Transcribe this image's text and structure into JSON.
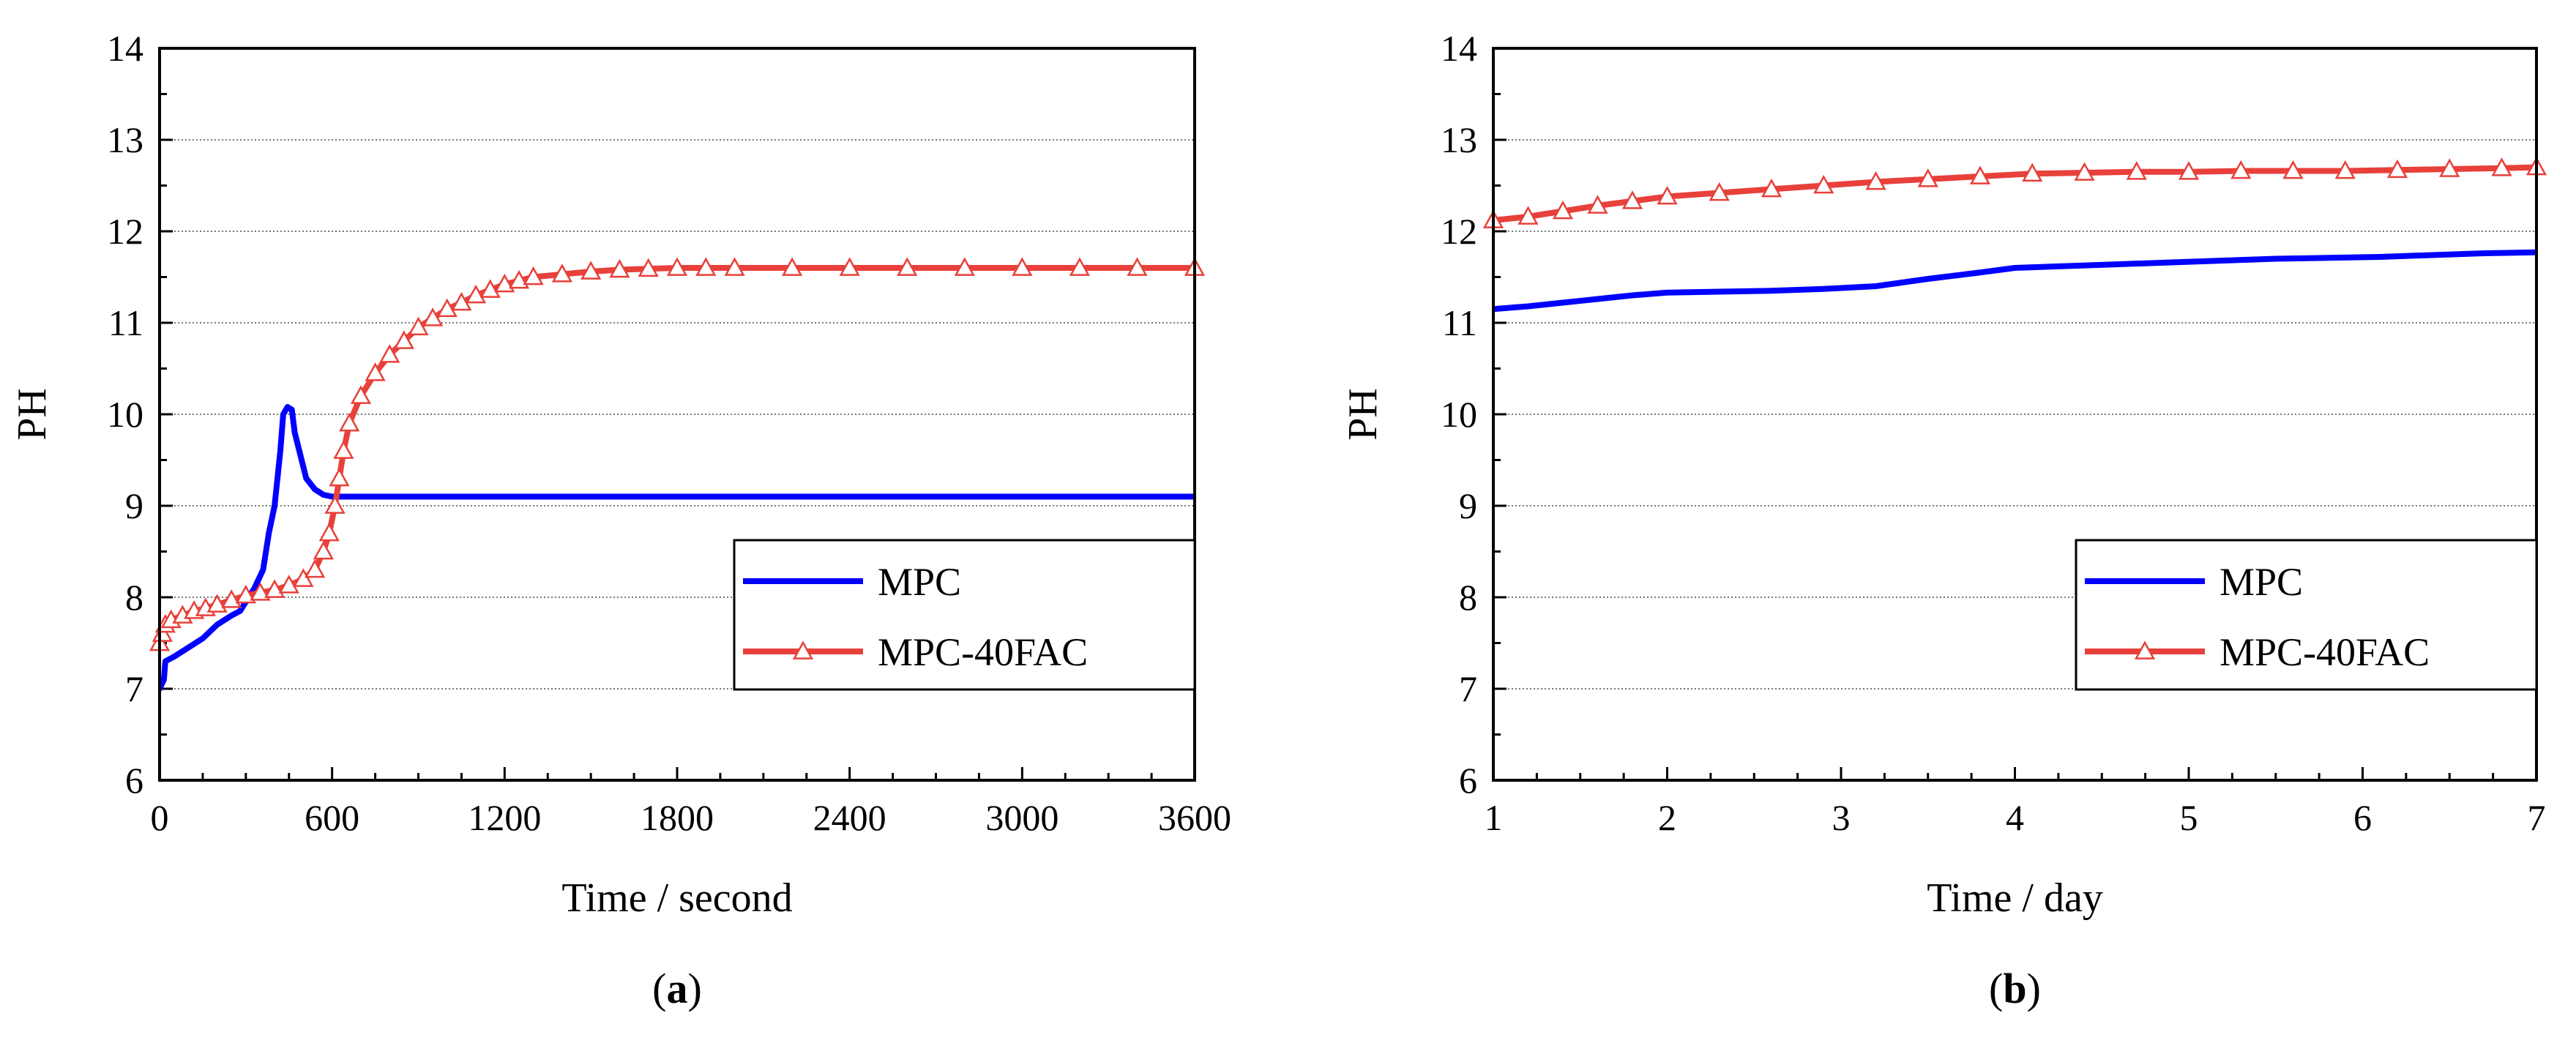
{
  "chart_data": [
    {
      "id": "a",
      "type": "line",
      "panel_label": "(a)",
      "panel_letter": "a",
      "xlabel": "Time / second",
      "ylabel": "PH",
      "xlim": [
        0,
        3600
      ],
      "ylim": [
        6,
        14
      ],
      "xticks": [
        0,
        600,
        1200,
        1800,
        2400,
        3000,
        3600
      ],
      "yticks": [
        6,
        7,
        8,
        9,
        10,
        11,
        12,
        13,
        14
      ],
      "grid": "horizontal dotted",
      "legend_position": "center-right",
      "series": [
        {
          "name": "MPC",
          "color": "#0000ff",
          "marker": "none",
          "points": [
            [
              0,
              7.0
            ],
            [
              15,
              7.1
            ],
            [
              20,
              7.3
            ],
            [
              50,
              7.35
            ],
            [
              100,
              7.45
            ],
            [
              150,
              7.55
            ],
            [
              200,
              7.7
            ],
            [
              250,
              7.8
            ],
            [
              280,
              7.85
            ],
            [
              300,
              7.95
            ],
            [
              330,
              8.1
            ],
            [
              360,
              8.3
            ],
            [
              380,
              8.7
            ],
            [
              400,
              9.0
            ],
            [
              420,
              9.6
            ],
            [
              430,
              10.0
            ],
            [
              445,
              10.08
            ],
            [
              460,
              10.05
            ],
            [
              470,
              9.8
            ],
            [
              490,
              9.55
            ],
            [
              510,
              9.3
            ],
            [
              540,
              9.18
            ],
            [
              570,
              9.12
            ],
            [
              600,
              9.1
            ],
            [
              700,
              9.1
            ],
            [
              1200,
              9.1
            ],
            [
              2400,
              9.1
            ],
            [
              3600,
              9.1
            ]
          ]
        },
        {
          "name": "MPC-40FAC",
          "color": "#e8403a",
          "marker": "open-triangle",
          "points": [
            [
              0,
              7.5
            ],
            [
              10,
              7.6
            ],
            [
              20,
              7.7
            ],
            [
              40,
              7.75
            ],
            [
              80,
              7.8
            ],
            [
              120,
              7.85
            ],
            [
              160,
              7.88
            ],
            [
              200,
              7.92
            ],
            [
              250,
              7.97
            ],
            [
              300,
              8.02
            ],
            [
              350,
              8.05
            ],
            [
              400,
              8.08
            ],
            [
              450,
              8.13
            ],
            [
              500,
              8.2
            ],
            [
              540,
              8.3
            ],
            [
              570,
              8.5
            ],
            [
              590,
              8.7
            ],
            [
              610,
              9.0
            ],
            [
              625,
              9.3
            ],
            [
              640,
              9.6
            ],
            [
              660,
              9.9
            ],
            [
              700,
              10.2
            ],
            [
              750,
              10.45
            ],
            [
              800,
              10.65
            ],
            [
              850,
              10.8
            ],
            [
              900,
              10.95
            ],
            [
              950,
              11.05
            ],
            [
              1000,
              11.15
            ],
            [
              1050,
              11.22
            ],
            [
              1100,
              11.3
            ],
            [
              1150,
              11.36
            ],
            [
              1200,
              11.42
            ],
            [
              1250,
              11.46
            ],
            [
              1300,
              11.5
            ],
            [
              1400,
              11.53
            ],
            [
              1500,
              11.56
            ],
            [
              1600,
              11.58
            ],
            [
              1700,
              11.59
            ],
            [
              1800,
              11.6
            ],
            [
              1900,
              11.6
            ],
            [
              2000,
              11.6
            ],
            [
              2200,
              11.6
            ],
            [
              2400,
              11.6
            ],
            [
              2600,
              11.6
            ],
            [
              2800,
              11.6
            ],
            [
              3000,
              11.6
            ],
            [
              3200,
              11.6
            ],
            [
              3400,
              11.6
            ],
            [
              3600,
              11.6
            ]
          ]
        }
      ]
    },
    {
      "id": "b",
      "type": "line",
      "panel_label": "(b)",
      "panel_letter": "b",
      "xlabel": "Time / day",
      "ylabel": "PH",
      "xlim": [
        1,
        7
      ],
      "ylim": [
        6,
        14
      ],
      "xticks": [
        1,
        2,
        3,
        4,
        5,
        6,
        7
      ],
      "yticks": [
        6,
        7,
        8,
        9,
        10,
        11,
        12,
        13,
        14
      ],
      "grid": "horizontal dotted",
      "legend_position": "center-right",
      "series": [
        {
          "name": "MPC",
          "color": "#0000ff",
          "marker": "none",
          "points": [
            [
              1.0,
              11.15
            ],
            [
              1.2,
              11.18
            ],
            [
              1.4,
              11.22
            ],
            [
              1.6,
              11.26
            ],
            [
              1.8,
              11.3
            ],
            [
              2.0,
              11.33
            ],
            [
              2.3,
              11.34
            ],
            [
              2.6,
              11.35
            ],
            [
              2.9,
              11.37
            ],
            [
              3.2,
              11.4
            ],
            [
              3.5,
              11.48
            ],
            [
              3.8,
              11.55
            ],
            [
              4.0,
              11.6
            ],
            [
              4.3,
              11.62
            ],
            [
              4.6,
              11.64
            ],
            [
              4.9,
              11.66
            ],
            [
              5.2,
              11.68
            ],
            [
              5.5,
              11.7
            ],
            [
              5.8,
              11.71
            ],
            [
              6.1,
              11.72
            ],
            [
              6.4,
              11.74
            ],
            [
              6.7,
              11.76
            ],
            [
              7.0,
              11.77
            ]
          ]
        },
        {
          "name": "MPC-40FAC",
          "color": "#e8403a",
          "marker": "open-triangle",
          "points": [
            [
              1.0,
              12.12
            ],
            [
              1.2,
              12.16
            ],
            [
              1.4,
              12.22
            ],
            [
              1.6,
              12.28
            ],
            [
              1.8,
              12.33
            ],
            [
              2.0,
              12.38
            ],
            [
              2.3,
              12.42
            ],
            [
              2.6,
              12.46
            ],
            [
              2.9,
              12.5
            ],
            [
              3.2,
              12.54
            ],
            [
              3.5,
              12.57
            ],
            [
              3.8,
              12.6
            ],
            [
              4.1,
              12.63
            ],
            [
              4.4,
              12.64
            ],
            [
              4.7,
              12.65
            ],
            [
              5.0,
              12.65
            ],
            [
              5.3,
              12.66
            ],
            [
              5.6,
              12.66
            ],
            [
              5.9,
              12.66
            ],
            [
              6.2,
              12.67
            ],
            [
              6.5,
              12.68
            ],
            [
              6.8,
              12.69
            ],
            [
              7.0,
              12.7
            ]
          ]
        }
      ]
    }
  ]
}
